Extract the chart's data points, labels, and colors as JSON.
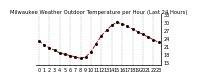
{
  "title": "Milwaukee Weather Outdoor Temperature per Hour (Last 24 Hours)",
  "hours": [
    0,
    1,
    2,
    3,
    4,
    5,
    6,
    7,
    8,
    9,
    10,
    11,
    12,
    13,
    14,
    15,
    16,
    17,
    18,
    19,
    20,
    21,
    22,
    23
  ],
  "temps": [
    23,
    21.5,
    20.5,
    19.5,
    18.5,
    18,
    17.5,
    17,
    16.5,
    17,
    19,
    22,
    25,
    27,
    29,
    30,
    29.5,
    28.5,
    27.5,
    26.5,
    25.5,
    24.5,
    23.5,
    22.5
  ],
  "line_color": "#cc0000",
  "marker_color": "#000000",
  "bg_color": "#ffffff",
  "grid_color": "#888888",
  "ylim": [
    14,
    33
  ],
  "ytick_values": [
    15,
    18,
    21,
    24,
    27,
    30,
    33
  ],
  "ytick_labels": [
    "15",
    "18",
    "21",
    "24",
    "27",
    "30",
    "33"
  ],
  "xtick_values": [
    0,
    1,
    2,
    3,
    4,
    5,
    6,
    7,
    8,
    9,
    10,
    11,
    12,
    13,
    14,
    15,
    16,
    17,
    18,
    19,
    20,
    21,
    22,
    23
  ],
  "grid_x_positions": [
    0,
    2,
    4,
    6,
    8,
    10,
    12,
    14,
    16,
    18,
    20,
    22
  ],
  "title_fontsize": 3.8,
  "tick_fontsize": 3.5,
  "linewidth": 0.7,
  "markersize": 1.0
}
